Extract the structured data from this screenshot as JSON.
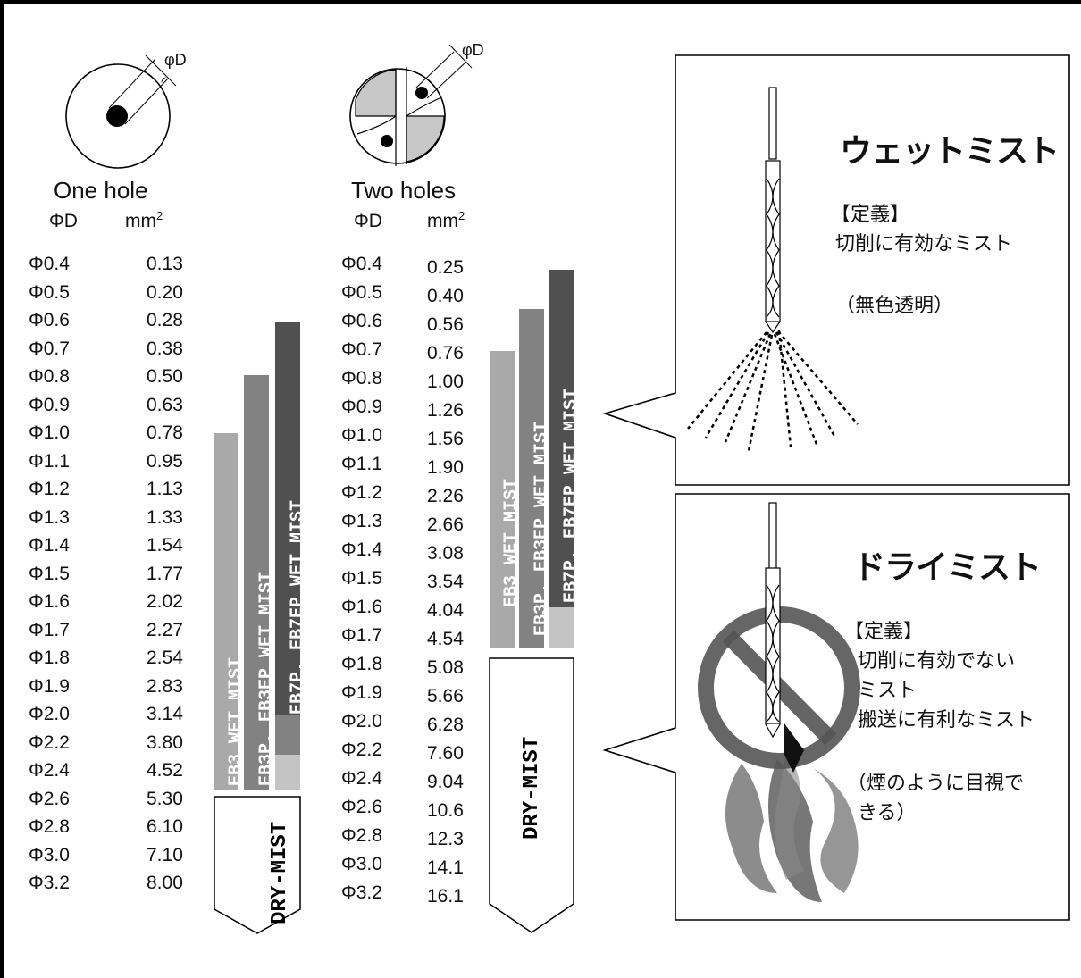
{
  "one_hole": {
    "title": "One hole",
    "col_d": "ΦD",
    "col_area": "mm",
    "col_area_sup": "2",
    "diameters": [
      "Φ0.4",
      "Φ0.5",
      "Φ0.6",
      "Φ0.7",
      "Φ0.8",
      "Φ0.9",
      "Φ1.0",
      "Φ1.1",
      "Φ1.2",
      "Φ1.3",
      "Φ1.4",
      "Φ1.5",
      "Φ1.6",
      "Φ1.7",
      "Φ1.8",
      "Φ1.9",
      "Φ2.0",
      "Φ2.2",
      "Φ2.4",
      "Φ2.6",
      "Φ2.8",
      "Φ3.0",
      "Φ3.2"
    ],
    "areas": [
      "0.13",
      "0.20",
      "0.28",
      "0.38",
      "0.50",
      "0.63",
      "0.78",
      "0.95",
      "1.13",
      "1.33",
      "1.54",
      "1.77",
      "2.02",
      "2.27",
      "2.54",
      "2.83",
      "3.14",
      "3.80",
      "4.52",
      "5.30",
      "6.10",
      "7.10",
      "8.00"
    ]
  },
  "two_holes": {
    "title": "Two holes",
    "col_d": "ΦD",
    "col_area": "mm",
    "col_area_sup": "2",
    "diameters": [
      "Φ0.4",
      "Φ0.5",
      "Φ0.6",
      "Φ0.7",
      "Φ0.8",
      "Φ0.9",
      "Φ1.0",
      "Φ1.1",
      "Φ1.2",
      "Φ1.3",
      "Φ1.4",
      "Φ1.5",
      "Φ1.6",
      "Φ1.7",
      "Φ1.8",
      "Φ1.9",
      "Φ2.0",
      "Φ2.2",
      "Φ2.4",
      "Φ2.6",
      "Φ2.8",
      "Φ3.0",
      "Φ3.2"
    ],
    "areas": [
      "0.25",
      "0.40",
      "0.56",
      "0.76",
      "1.00",
      "1.26",
      "1.56",
      "1.90",
      "2.26",
      "2.66",
      "3.08",
      "3.54",
      "4.04",
      "4.54",
      "5.08",
      "5.66",
      "6.28",
      "7.60",
      "9.04",
      "10.6",
      "12.3",
      "14.1",
      "16.1"
    ]
  },
  "diagram_labels": {
    "phi_d": "φD"
  },
  "bars": {
    "eb3": "EB3 WET MIST",
    "eb3p": "EB3P, EB3EP WET MIST",
    "eb7p": "EB7P, EB7EP WET MIST",
    "dry": "DRY-MIST"
  },
  "wet_box": {
    "title": "ウェットミスト",
    "definition_label": "【定義】",
    "definition": "切削に有効なミスト",
    "note": "（無色透明）"
  },
  "dry_box": {
    "title": "ドライミスト",
    "definition_label": "【定義】",
    "line1": "切削に有効でない",
    "line2": "ミスト",
    "line3": "搬送に有利なミスト",
    "note1": "（煙のように目視で",
    "note2": "きる）"
  },
  "colors": {
    "eb3": "#a9a9a9",
    "eb3p": "#828282",
    "eb7p": "#505050",
    "light": "#c4c4c4"
  }
}
